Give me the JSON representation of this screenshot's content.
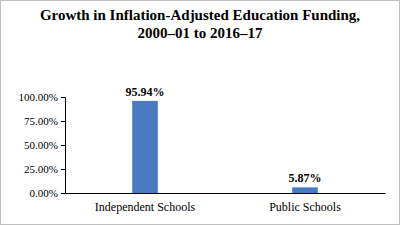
{
  "chart_data": {
    "type": "bar",
    "title": "Growth in Inflation-Adjusted Education Funding, 2000–01 to 2016–17",
    "categories": [
      "Independent Schools",
      "Public Schools"
    ],
    "values": [
      95.94,
      5.87
    ],
    "value_labels": [
      "95.94%",
      "5.87%"
    ],
    "color": "#4a7bc0",
    "ylim": [
      0,
      100
    ],
    "yticks": [
      {
        "value": 0,
        "label": "0.00%"
      },
      {
        "value": 25,
        "label": "25.00%"
      },
      {
        "value": 50,
        "label": "50.00%"
      },
      {
        "value": 75,
        "label": "75.00%"
      },
      {
        "value": 100,
        "label": "100.00%"
      }
    ],
    "grid": false,
    "data_labels": true
  }
}
